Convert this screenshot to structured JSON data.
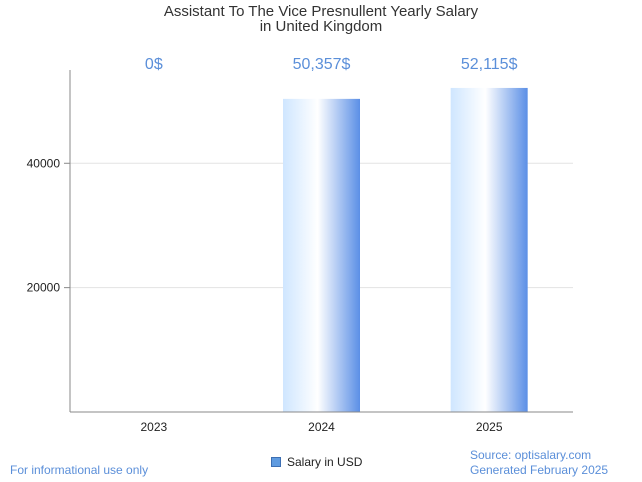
{
  "chart_data": {
    "type": "bar",
    "title_line1": "Assistant To The Vice Presnullent Yearly Salary",
    "title_line2": "in United Kingdom",
    "categories": [
      "2023",
      "2024",
      "2025"
    ],
    "series": [
      {
        "name": "Salary in USD",
        "values": [
          0,
          50357,
          52115
        ],
        "value_labels": [
          "0$",
          "50,357$",
          "52,115$"
        ]
      }
    ],
    "yticks": [
      20000,
      40000
    ],
    "ytick_labels": [
      "20000",
      "40000"
    ],
    "ylim": [
      0,
      55000
    ],
    "grid": true,
    "legend_position": "bottom-center"
  },
  "footer": {
    "disclaimer": "For informational use only",
    "source": "Source: optisalary.com",
    "generated": "Generated February 2025"
  },
  "colors": {
    "bar_left": "#cfe6ff",
    "bar_mid": "#ffffff",
    "bar_right": "#5b8fe6",
    "value_label": "#5b8fd9",
    "grid": "#e3e3e3",
    "axis": "#888888"
  }
}
